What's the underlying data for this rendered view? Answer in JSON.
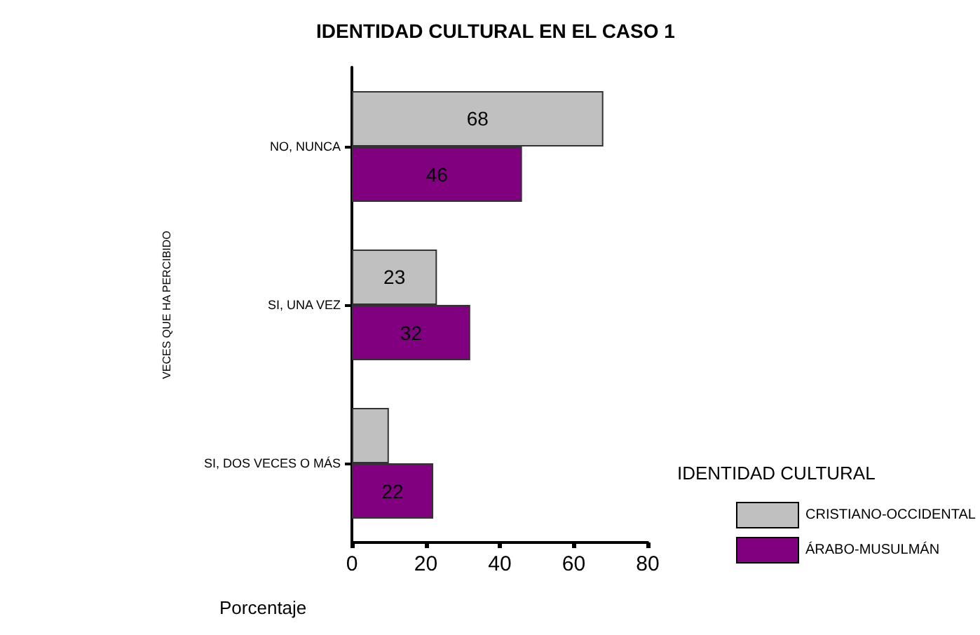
{
  "chart_data": {
    "type": "bar",
    "orientation": "horizontal",
    "title": "IDENTIDAD CULTURAL EN EL CASO 1",
    "xlabel": "Porcentaje",
    "ylabel": "VECES QUE HA PERCIBIDO",
    "legend_title": "IDENTIDAD CULTURAL",
    "categories": [
      "NO, NUNCA",
      "SI, UNA VEZ",
      "SI, DOS VECES O MÁS"
    ],
    "series": [
      {
        "name": "CRISTIANO-OCCIDENTAL",
        "color": "#c0c0c0",
        "values": [
          68,
          23,
          10
        ],
        "value_labels": [
          "68",
          "23",
          null
        ]
      },
      {
        "name": "ÁRABO-MUSULMÁN",
        "color": "#800080",
        "values": [
          46,
          32,
          22
        ],
        "value_labels": [
          "46",
          "32",
          "22"
        ]
      }
    ],
    "xlim": [
      0,
      80
    ],
    "xticks": [
      0,
      20,
      40,
      60,
      80
    ],
    "grid": false,
    "legend": "right"
  }
}
